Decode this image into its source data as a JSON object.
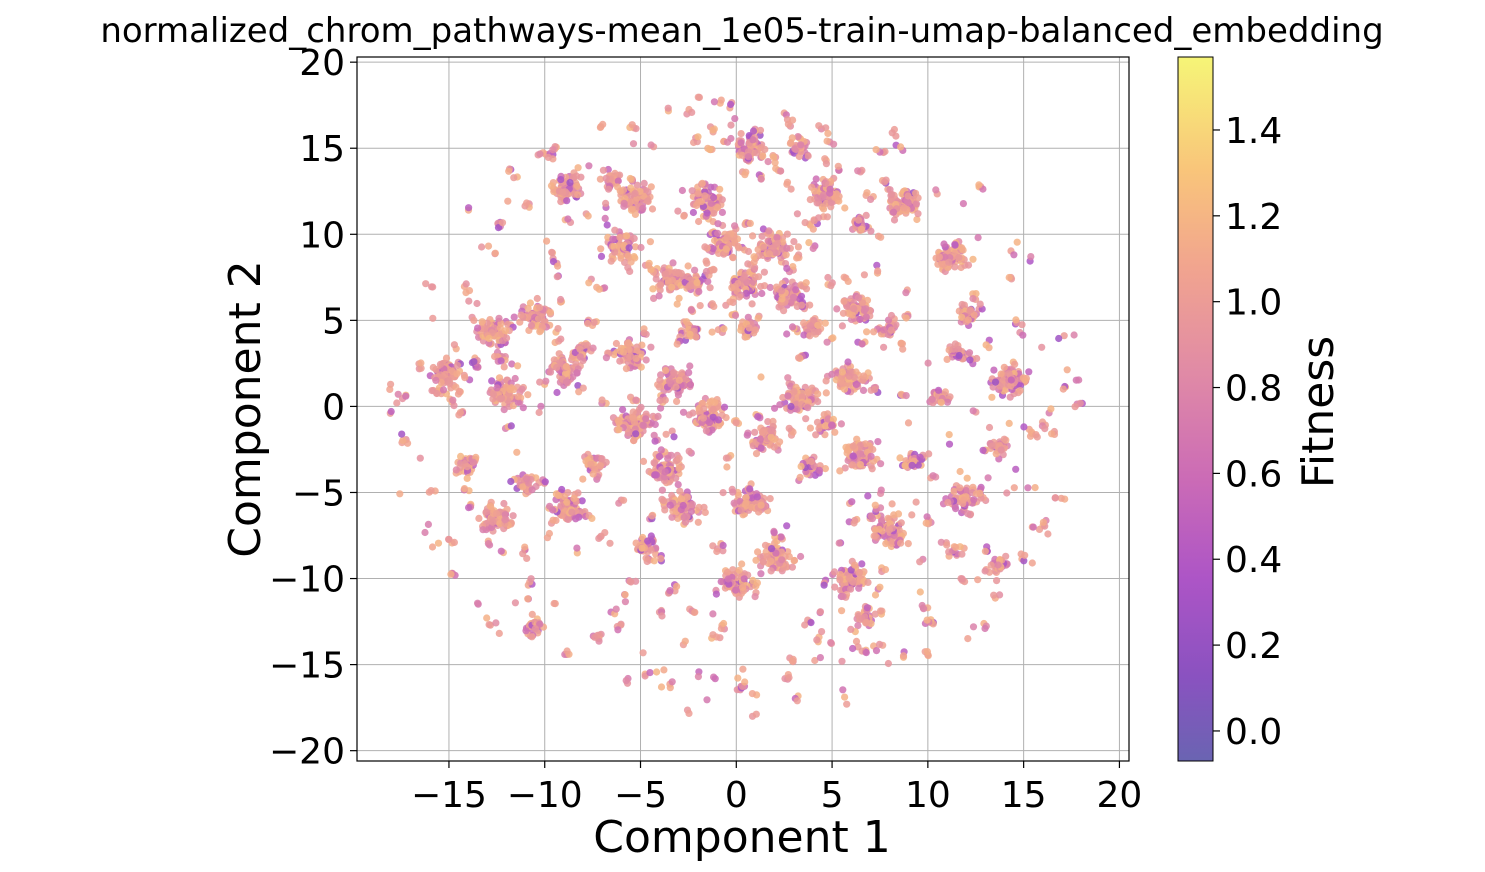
{
  "chart_data": {
    "type": "scatter",
    "title": "normalized_chrom_pathways-mean_1e05-train-umap-balanced_embedding",
    "xlabel": "Component 1",
    "ylabel": "Component 2",
    "xlim": [
      -19.8,
      20.5
    ],
    "ylim": [
      -20.6,
      20.3
    ],
    "xticks": [
      -15,
      -10,
      -5,
      0,
      5,
      10,
      15,
      20
    ],
    "yticks": [
      -20,
      -15,
      -10,
      -5,
      0,
      5,
      10,
      15,
      20
    ],
    "grid": true,
    "colorbar": {
      "label": "Fitness",
      "min": -0.07,
      "max": 1.57,
      "ticks": [
        0.0,
        0.2,
        0.4,
        0.6,
        0.8,
        1.0,
        1.2,
        1.4
      ],
      "colormap": "plasma"
    },
    "clusters": [
      {
        "x": -15.1,
        "y": 2.0,
        "size": "large"
      },
      {
        "x": -12.7,
        "y": 4.3,
        "size": "large"
      },
      {
        "x": -12.0,
        "y": 0.8,
        "size": "large"
      },
      {
        "x": -12.5,
        "y": -6.5,
        "size": "large"
      },
      {
        "x": -10.3,
        "y": 5.3,
        "size": "large"
      },
      {
        "x": -9.0,
        "y": 2.0,
        "size": "large"
      },
      {
        "x": -8.8,
        "y": 12.6,
        "size": "large"
      },
      {
        "x": -8.7,
        "y": -6.0,
        "size": "large"
      },
      {
        "x": -6.0,
        "y": 9.2,
        "size": "large"
      },
      {
        "x": -5.5,
        "y": 3.0,
        "size": "large"
      },
      {
        "x": -5.5,
        "y": -1.0,
        "size": "large"
      },
      {
        "x": -5.2,
        "y": 12.0,
        "size": "large"
      },
      {
        "x": -3.4,
        "y": 7.3,
        "size": "large"
      },
      {
        "x": -3.2,
        "y": 1.4,
        "size": "large"
      },
      {
        "x": -3.7,
        "y": -3.6,
        "size": "large"
      },
      {
        "x": -2.8,
        "y": -5.8,
        "size": "large"
      },
      {
        "x": -1.5,
        "y": -0.5,
        "size": "large"
      },
      {
        "x": -1.5,
        "y": 11.8,
        "size": "large"
      },
      {
        "x": -0.5,
        "y": 9.6,
        "size": "large"
      },
      {
        "x": 0.6,
        "y": 7.1,
        "size": "large"
      },
      {
        "x": 0.8,
        "y": -5.5,
        "size": "large"
      },
      {
        "x": 1.5,
        "y": -1.7,
        "size": "large"
      },
      {
        "x": 2.0,
        "y": 9.3,
        "size": "large"
      },
      {
        "x": 2.7,
        "y": 6.5,
        "size": "large"
      },
      {
        "x": 3.3,
        "y": 0.5,
        "size": "large"
      },
      {
        "x": 2.1,
        "y": -8.8,
        "size": "large"
      },
      {
        "x": 0.8,
        "y": 15.0,
        "size": "large"
      },
      {
        "x": 4.7,
        "y": 12.3,
        "size": "large"
      },
      {
        "x": 5.9,
        "y": 1.5,
        "size": "large"
      },
      {
        "x": 6.3,
        "y": 5.7,
        "size": "large"
      },
      {
        "x": 6.5,
        "y": -2.8,
        "size": "large"
      },
      {
        "x": 6.0,
        "y": -10.0,
        "size": "large"
      },
      {
        "x": 8.0,
        "y": -7.2,
        "size": "large"
      },
      {
        "x": 8.8,
        "y": 11.8,
        "size": "large"
      },
      {
        "x": 11.2,
        "y": 8.7,
        "size": "large"
      },
      {
        "x": 14.2,
        "y": 1.5,
        "size": "large"
      },
      {
        "x": 12.0,
        "y": -5.3,
        "size": "large"
      },
      {
        "x": 0.1,
        "y": -10.2,
        "size": "large"
      },
      {
        "x": -10.6,
        "y": -12.8,
        "size": "medium"
      },
      {
        "x": 10.5,
        "y": 0.5,
        "size": "medium"
      },
      {
        "x": 13.7,
        "y": -2.3,
        "size": "medium"
      },
      {
        "x": 8.0,
        "y": 4.6,
        "size": "medium"
      },
      {
        "x": 4.0,
        "y": 4.7,
        "size": "medium"
      },
      {
        "x": 0.6,
        "y": 4.6,
        "size": "medium"
      },
      {
        "x": -2.4,
        "y": 4.4,
        "size": "medium"
      },
      {
        "x": -8.0,
        "y": 3.2,
        "size": "medium"
      },
      {
        "x": 3.3,
        "y": 15.0,
        "size": "medium"
      },
      {
        "x": -2.1,
        "y": 7.2,
        "size": "medium"
      },
      {
        "x": -6.5,
        "y": 13.2,
        "size": "medium"
      },
      {
        "x": 13.7,
        "y": -9.2,
        "size": "medium"
      },
      {
        "x": 6.8,
        "y": -12.3,
        "size": "medium"
      },
      {
        "x": 4.8,
        "y": -1.0,
        "size": "medium"
      },
      {
        "x": -11.0,
        "y": -4.5,
        "size": "medium"
      },
      {
        "x": 9.3,
        "y": -3.2,
        "size": "medium"
      },
      {
        "x": -4.7,
        "y": -8.0,
        "size": "medium"
      },
      {
        "x": 11.5,
        "y": 3.1,
        "size": "medium"
      },
      {
        "x": -14.0,
        "y": -3.5,
        "size": "medium"
      },
      {
        "x": 12.0,
        "y": 5.3,
        "size": "medium"
      },
      {
        "x": -7.6,
        "y": -3.3,
        "size": "medium"
      },
      {
        "x": 6.5,
        "y": 10.6,
        "size": "medium"
      },
      {
        "x": 4.0,
        "y": -3.5,
        "size": "medium"
      }
    ]
  }
}
